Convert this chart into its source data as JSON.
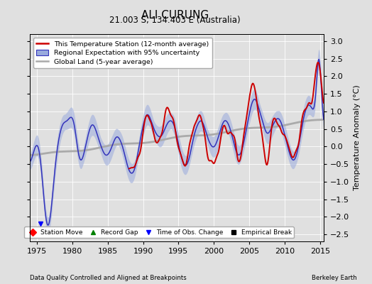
{
  "title": "ALI CURUNG",
  "subtitle": "21.003 S, 134.403 E (Australia)",
  "xlabel_bottom": "Data Quality Controlled and Aligned at Breakpoints",
  "xlabel_right": "Berkeley Earth",
  "ylabel": "Temperature Anomaly (°C)",
  "xlim": [
    1974.0,
    2015.5
  ],
  "ylim": [
    -2.7,
    3.2
  ],
  "yticks": [
    -2.5,
    -2,
    -1.5,
    -1,
    -0.5,
    0,
    0.5,
    1,
    1.5,
    2,
    2.5,
    3
  ],
  "xticks": [
    1975,
    1980,
    1985,
    1990,
    1995,
    2000,
    2005,
    2010,
    2015
  ],
  "station_color": "#cc0000",
  "regional_color": "#3333bb",
  "regional_fill_color": "#99aadd",
  "global_color": "#aaaaaa",
  "background_color": "#e0e0e0",
  "title_fontsize": 11,
  "subtitle_fontsize": 8.5,
  "tick_fontsize": 8,
  "ylabel_fontsize": 8
}
